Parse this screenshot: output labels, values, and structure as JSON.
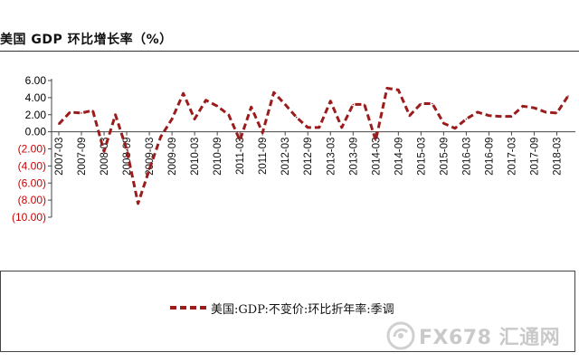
{
  "chart_data": {
    "type": "line",
    "title": "美国 GDP 环比增长率（%）",
    "xlabel": "",
    "ylabel": "",
    "ylim": [
      -10,
      6
    ],
    "y_ticks": [
      {
        "value": 6,
        "label": "6.00",
        "color": "#000000"
      },
      {
        "value": 4,
        "label": "4.00",
        "color": "#000000"
      },
      {
        "value": 2,
        "label": "2.00",
        "color": "#000000"
      },
      {
        "value": 0,
        "label": "0.00",
        "color": "#000000"
      },
      {
        "value": -2,
        "label": "(2.00)",
        "color": "#cc0000"
      },
      {
        "value": -4,
        "label": "(4.00)",
        "color": "#cc0000"
      },
      {
        "value": -6,
        "label": "(6.00)",
        "color": "#cc0000"
      },
      {
        "value": -8,
        "label": "(8.00)",
        "color": "#cc0000"
      },
      {
        "value": -10,
        "label": "(10.00)",
        "color": "#cc0000"
      }
    ],
    "x_tick_labels": [
      "2007-03",
      "2007-09",
      "2008-03",
      "2008-09",
      "2009-03",
      "2009-09",
      "2010-03",
      "2010-09",
      "2011-03",
      "2011-09",
      "2012-03",
      "2012-09",
      "2013-03",
      "2013-09",
      "2014-03",
      "2014-09",
      "2015-03",
      "2015-09",
      "2016-03",
      "2016-09",
      "2017-03",
      "2017-09",
      "2018-03"
    ],
    "grid": false,
    "legend_position": "bottom",
    "x": [
      "2007-03",
      "2007-06",
      "2007-09",
      "2007-12",
      "2008-03",
      "2008-06",
      "2008-09",
      "2008-12",
      "2009-03",
      "2009-06",
      "2009-09",
      "2009-12",
      "2010-03",
      "2010-06",
      "2010-09",
      "2010-12",
      "2011-03",
      "2011-06",
      "2011-09",
      "2011-12",
      "2012-03",
      "2012-06",
      "2012-09",
      "2012-12",
      "2013-03",
      "2013-06",
      "2013-09",
      "2013-12",
      "2014-03",
      "2014-06",
      "2014-09",
      "2014-12",
      "2015-03",
      "2015-06",
      "2015-09",
      "2015-12",
      "2016-03",
      "2016-06",
      "2016-09",
      "2016-12",
      "2017-03",
      "2017-06",
      "2017-09",
      "2017-12",
      "2018-03",
      "2018-06"
    ],
    "series": [
      {
        "name": "美国:GDP:不变价:环比折年率:季调",
        "color": "#9b1c1c",
        "values": [
          0.9,
          2.3,
          2.2,
          2.5,
          -2.3,
          2.0,
          -2.1,
          -8.4,
          -4.4,
          -0.6,
          1.5,
          4.5,
          1.5,
          3.7,
          3.0,
          2.0,
          -1.0,
          2.9,
          -0.1,
          4.6,
          3.2,
          1.7,
          0.5,
          0.5,
          3.6,
          0.5,
          3.2,
          3.2,
          -1.0,
          5.1,
          4.9,
          1.9,
          3.3,
          3.3,
          1.0,
          0.4,
          1.5,
          2.3,
          1.9,
          1.8,
          1.8,
          3.0,
          2.8,
          2.3,
          2.2,
          4.2
        ]
      }
    ]
  },
  "legend": {
    "label": "美国:GDP:不变价:环比折年率:季调"
  },
  "watermark": {
    "text": "FX678 汇通网"
  }
}
